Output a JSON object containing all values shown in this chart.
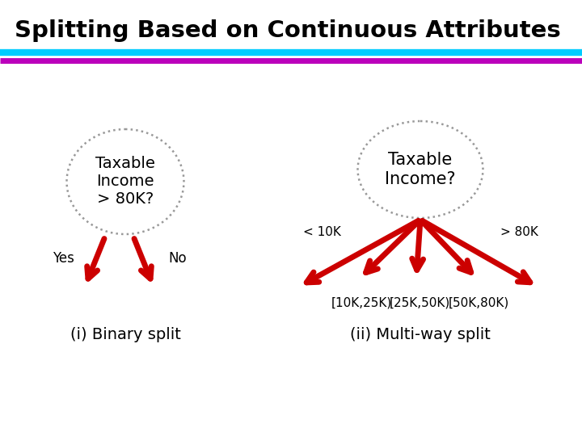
{
  "title": "Splitting Based on Continuous Attributes",
  "title_fontsize": 21,
  "title_fontweight": "bold",
  "title_color": "#000000",
  "line1_color": "#00CCFF",
  "line2_color": "#BB00BB",
  "bg_color": "#FFFFFF",
  "arrow_color": "#CC0000",
  "node_edge_color": "#999999",
  "left_node_text": "Taxable\nIncome\n> 80K?",
  "right_node_text": "Taxable\nIncome?",
  "left_label": "(i) Binary split",
  "right_label": "(ii) Multi-way split",
  "binary_yes": "Yes",
  "binary_no": "No",
  "multi_left_label": "< 10K",
  "multi_right_label": "> 80K",
  "leaf_labels": [
    "[10K,25K)",
    "[25K,50K)",
    "[50K,80K)"
  ]
}
